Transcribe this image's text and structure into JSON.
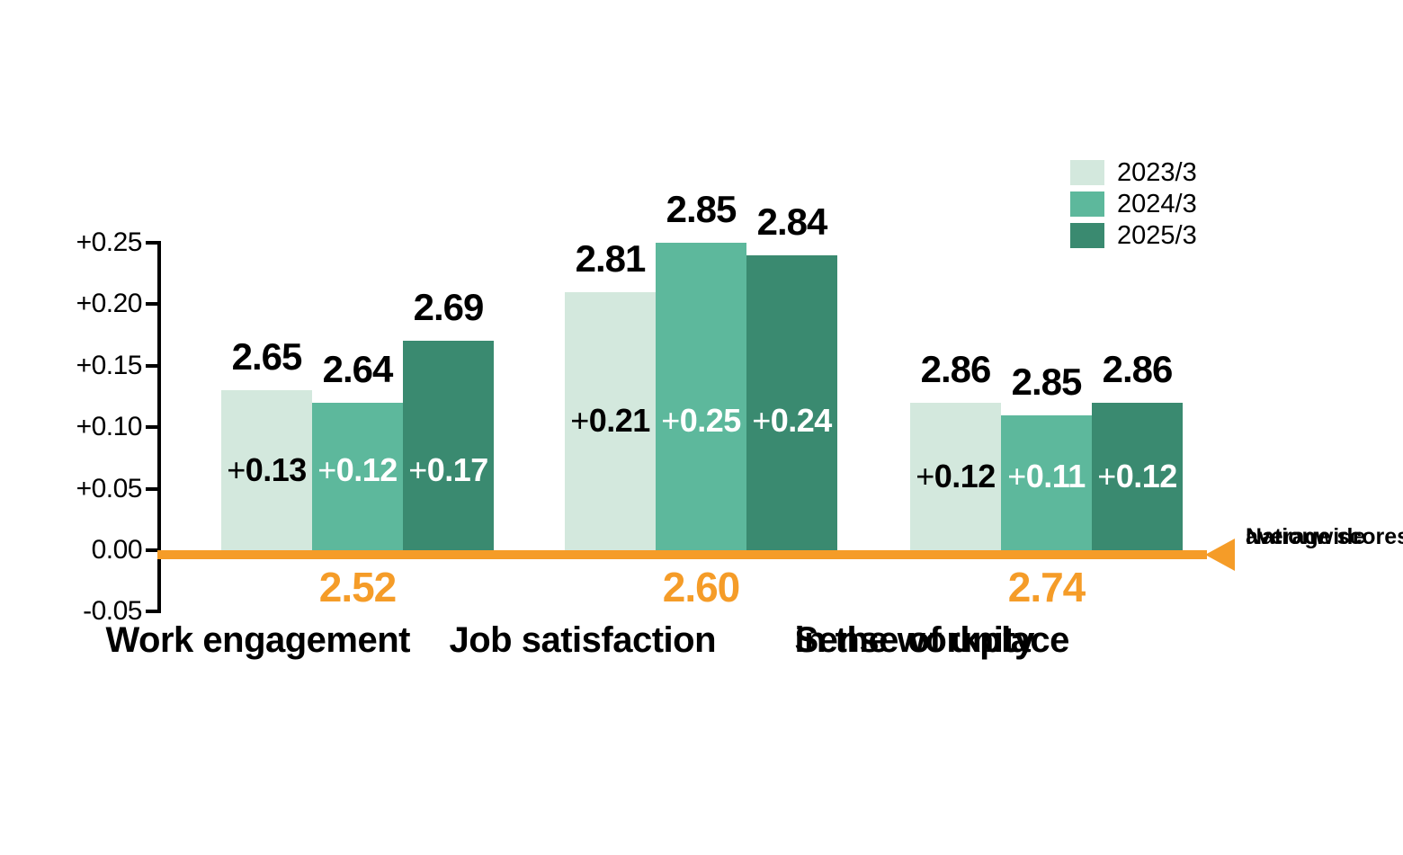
{
  "chart_data": {
    "type": "bar",
    "title": "",
    "legend": {
      "position": "top-right",
      "items": [
        "2023/3",
        "2024/3",
        "2025/3"
      ]
    },
    "y_axis": {
      "tick_labels": [
        "+0.25",
        "+0.20",
        "+0.15",
        "+0.10",
        "+0.05",
        "0.00",
        "-0.05"
      ],
      "tick_values": [
        0.25,
        0.2,
        0.15,
        0.1,
        0.05,
        0.0,
        -0.05
      ],
      "min": -0.05,
      "max": 0.25,
      "grid": false
    },
    "categories": [
      {
        "lines": [
          "Work engagement"
        ],
        "nationwide_average": "2.52"
      },
      {
        "lines": [
          "Job satisfaction"
        ],
        "nationwide_average": "2.60"
      },
      {
        "lines": [
          "Sense of unity",
          "in the workplace"
        ],
        "nationwide_average": "2.74"
      }
    ],
    "series": [
      {
        "name": "2023/3",
        "color": "#d3e8dd",
        "diff_label_color": "#000000",
        "diffs": [
          0.13,
          0.21,
          0.12
        ],
        "diff_labels": [
          "+0.13",
          "+0.21",
          "+0.12"
        ],
        "scores": [
          "2.65",
          "2.81",
          "2.86"
        ]
      },
      {
        "name": "2024/3",
        "color": "#5db89c",
        "diff_label_color": "#ffffff",
        "diffs": [
          0.12,
          0.25,
          0.11
        ],
        "diff_labels": [
          "+0.12",
          "+0.25",
          "+0.11"
        ],
        "scores": [
          "2.64",
          "2.85",
          "2.85"
        ]
      },
      {
        "name": "2025/3",
        "color": "#3a8a70",
        "diff_label_color": "#ffffff",
        "diffs": [
          0.17,
          0.24,
          0.12
        ],
        "diff_labels": [
          "+0.17",
          "+0.24",
          "+0.12"
        ],
        "scores": [
          "2.69",
          "2.84",
          "2.86"
        ]
      }
    ],
    "baseline": {
      "label_lines": [
        "Nationwide",
        "average scores"
      ],
      "color": "#f59c28"
    },
    "colors": {
      "axis": "#000000",
      "score_label": "#000000",
      "average_label": "#f59c28"
    }
  }
}
